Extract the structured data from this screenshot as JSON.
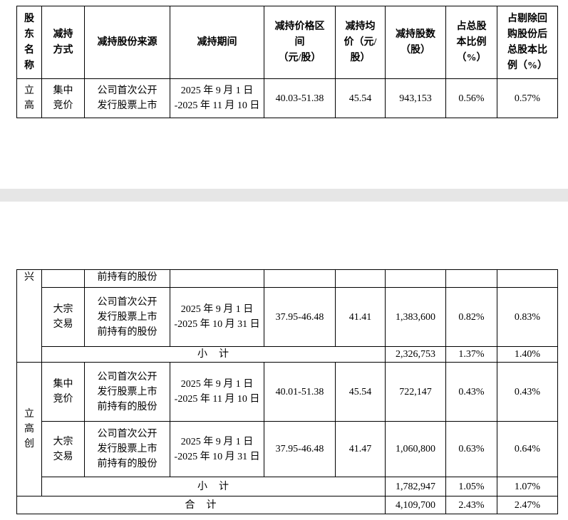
{
  "table_top": {
    "header": [
      [
        "股",
        "东",
        "名",
        "称"
      ],
      [
        "减持",
        "方式"
      ],
      [
        "减持股份来源"
      ],
      [
        "减持期间"
      ],
      [
        "减持价格区",
        "间",
        "（元/股）"
      ],
      [
        "减持均",
        "价（元/",
        "股）"
      ],
      [
        "减持股数",
        "（股）"
      ],
      [
        "占总股",
        "本比例",
        "（%）"
      ],
      [
        "占剔除回",
        "购股份后",
        "总股本比",
        "例（%）"
      ]
    ],
    "rows": [
      {
        "holder": [
          "立",
          "高"
        ],
        "method": [
          "集中",
          "竞价"
        ],
        "source": [
          "公司首次公开",
          "发行股票上市"
        ],
        "period": [
          "2025 年 9 月 1 日",
          "-2025 年 11 月 10 日"
        ],
        "price_range": "40.03-51.38",
        "avg_price": "45.54",
        "shares": "943,153",
        "ratio_total": "0.56%",
        "ratio_excl": "0.57%"
      }
    ]
  },
  "table_bottom": {
    "groups": [
      {
        "holder": [
          "兴"
        ],
        "rows": [
          {
            "source": [
              "前持有的股份"
            ]
          },
          {
            "method": [
              "大宗",
              "交易"
            ],
            "source": [
              "公司首次公开",
              "发行股票上市",
              "前持有的股份"
            ],
            "period": [
              "2025 年 9 月 1 日",
              "-2025 年 10 月 31 日"
            ],
            "price_range": "37.95-46.48",
            "avg_price": "41.41",
            "shares": "1,383,600",
            "ratio_total": "0.82%",
            "ratio_excl": "0.83%"
          }
        ],
        "subtotal": {
          "label": "小　计",
          "shares": "2,326,753",
          "ratio_total": "1.37%",
          "ratio_excl": "1.40%"
        }
      },
      {
        "holder": [
          "立",
          "高",
          "创"
        ],
        "rows": [
          {
            "method": [
              "集中",
              "竞价"
            ],
            "source": [
              "公司首次公开",
              "发行股票上市",
              "前持有的股份"
            ],
            "period": [
              "2025 年 9 月 1 日",
              "-2025 年 11 月 10 日"
            ],
            "price_range": "40.01-51.38",
            "avg_price": "45.54",
            "shares": "722,147",
            "ratio_total": "0.43%",
            "ratio_excl": "0.43%"
          },
          {
            "method": [
              "大宗",
              "交易"
            ],
            "source": [
              "公司首次公开",
              "发行股票上市",
              "前持有的股份"
            ],
            "period": [
              "2025 年 9 月 1 日",
              "-2025 年 10 月 31 日"
            ],
            "price_range": "37.95-46.48",
            "avg_price": "41.47",
            "shares": "1,060,800",
            "ratio_total": "0.63%",
            "ratio_excl": "0.64%"
          }
        ],
        "subtotal": {
          "label": "小　计",
          "shares": "1,782,947",
          "ratio_total": "1.05%",
          "ratio_excl": "1.07%"
        }
      }
    ],
    "total": {
      "label": "合　计",
      "shares": "4,109,700",
      "ratio_total": "2.43%",
      "ratio_excl": "2.47%"
    }
  }
}
